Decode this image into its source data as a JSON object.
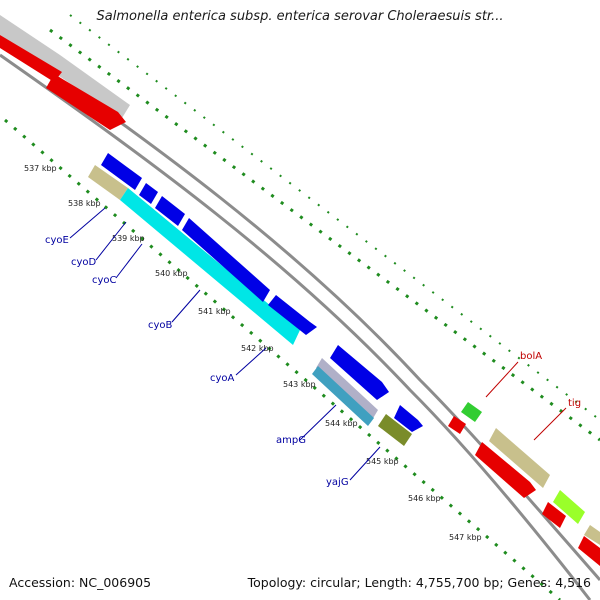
{
  "header": {
    "title": "Salmonella enterica subsp. enterica serovar Choleraesuis str..."
  },
  "footer": {
    "accession": "Accession: NC_006905",
    "summary": "Topology: circular; Length: 4,755,700 bp; Genes: 4,516"
  },
  "ticks": [
    "537 kbp",
    "538 kbp",
    "539 kbp",
    "540 kbp",
    "541 kbp",
    "542 kbp",
    "543 kbp",
    "544 kbp",
    "545 kbp",
    "546 kbp",
    "547 kbp"
  ],
  "genes_left": [
    "cyoE",
    "cyoD",
    "cyoC",
    "cyoB",
    "cyoA",
    "ampG",
    "yajG"
  ],
  "genes_right": [
    "bolA",
    "tig"
  ],
  "colors": {
    "backbone": "#8c8c8c",
    "reverse_cds": "#0000e6",
    "forward_cds": "#e60000",
    "cyan_cds": "#00e6e6",
    "khaki_cds": "#c8c08c",
    "gray_cds": "#c8c8c8",
    "green_cds": "#32cd32",
    "olive_cds": "#7a8c2a",
    "lime_cds": "#9aff2a",
    "dots": "#1f8c1f",
    "label_blue": "#0000a0",
    "label_red": "#c00000"
  }
}
